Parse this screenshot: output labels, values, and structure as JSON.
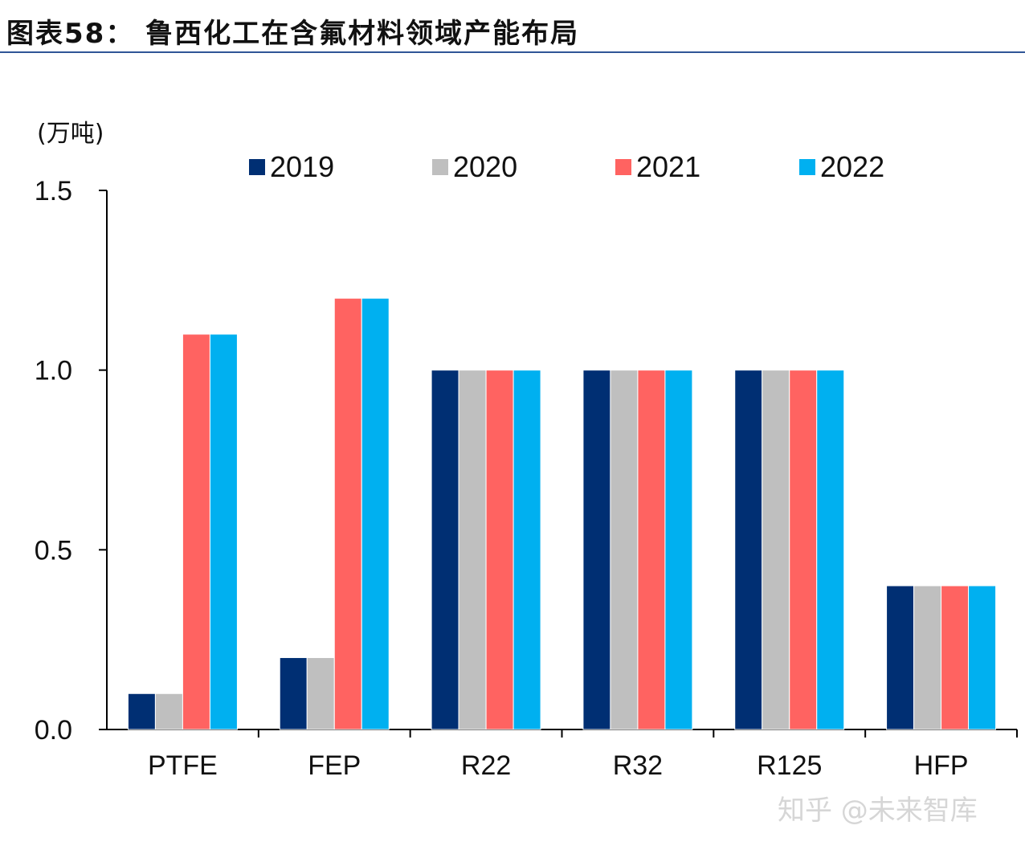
{
  "title": "图表58： 鲁西化工在含氟材料领域产能布局",
  "watermark": "知乎 @未来智库",
  "chart_data": {
    "type": "bar",
    "title": "图表58： 鲁西化工在含氟材料领域产能布局",
    "ylabel": "(万吨)",
    "xlabel": "",
    "categories": [
      "PTFE",
      "FEP",
      "R22",
      "R32",
      "R125",
      "HFP"
    ],
    "series": [
      {
        "name": "2019",
        "color": "#002F73",
        "values": [
          0.1,
          0.2,
          1.0,
          1.0,
          1.0,
          0.4
        ]
      },
      {
        "name": "2020",
        "color": "#BFBFBF",
        "values": [
          0.1,
          0.2,
          1.0,
          1.0,
          1.0,
          0.4
        ]
      },
      {
        "name": "2021",
        "color": "#FF6361",
        "values": [
          1.1,
          1.2,
          1.0,
          1.0,
          1.0,
          0.4
        ]
      },
      {
        "name": "2022",
        "color": "#00B0F0",
        "values": [
          1.1,
          1.2,
          1.0,
          1.0,
          1.0,
          0.4
        ]
      }
    ],
    "ylim": [
      0,
      1.5
    ],
    "yticks": [
      "0.0",
      "0.5",
      "1.0",
      "1.5"
    ],
    "grid": false,
    "legend": "top"
  }
}
